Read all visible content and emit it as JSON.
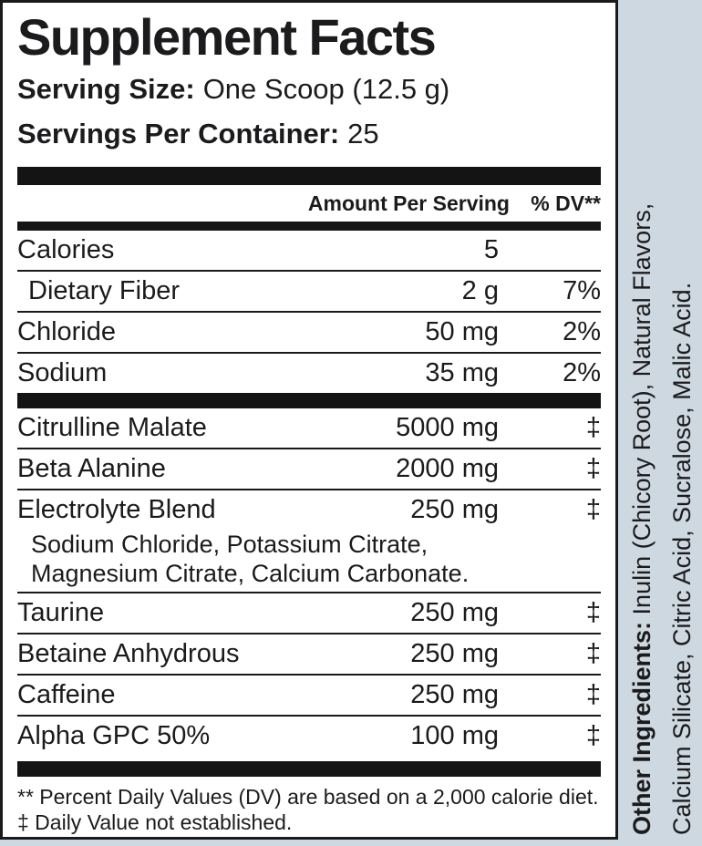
{
  "colors": {
    "background": "#cdd8e1",
    "panel_background": "#ffffff",
    "ink": "#1a1a1a"
  },
  "panel": {
    "title": "Supplement Facts",
    "serving_size_label": "Serving Size:",
    "serving_size_value": "One Scoop (12.5 g)",
    "servings_label": "Servings Per Container:",
    "servings_value": "25",
    "header": {
      "amount": "Amount Per Serving",
      "dv": "% DV**"
    },
    "nutrients": [
      {
        "name": "Calories",
        "amount": "5",
        "dv": ""
      },
      {
        "name": "Dietary Fiber",
        "amount": "2 g",
        "dv": "7%"
      },
      {
        "name": "Chloride",
        "amount": "50 mg",
        "dv": "2%"
      },
      {
        "name": "Sodium",
        "amount": "35 mg",
        "dv": "2%"
      }
    ],
    "ingredients": [
      {
        "name": "Citrulline Malate",
        "amount": "5000 mg",
        "dv": "‡"
      },
      {
        "name": "Beta Alanine",
        "amount": "2000 mg",
        "dv": "‡"
      },
      {
        "name": "Electrolyte Blend",
        "amount": "250 mg",
        "dv": "‡"
      },
      {
        "name": "Taurine",
        "amount": "250 mg",
        "dv": "‡"
      },
      {
        "name": "Betaine Anhydrous",
        "amount": "250 mg",
        "dv": "‡"
      },
      {
        "name": "Caffeine",
        "amount": "250 mg",
        "dv": "‡"
      },
      {
        "name": "Alpha GPC 50%",
        "amount": "100 mg",
        "dv": "‡"
      }
    ],
    "blend_components": [
      "Sodium Chloride, Potassium Citrate,",
      "Magnesium Citrate, Calcium Carbonate."
    ],
    "footnotes": [
      "** Percent Daily Values (DV) are based on a 2,000 calorie diet.",
      "‡ Daily Value not established."
    ]
  },
  "side_text": {
    "label": "Other Ingredients:",
    "line1_rest": "Inulin (Chicory Root), Natural Flavors,",
    "line2": "Calcium Silicate, Citric Acid, Sucralose, Malic Acid."
  }
}
